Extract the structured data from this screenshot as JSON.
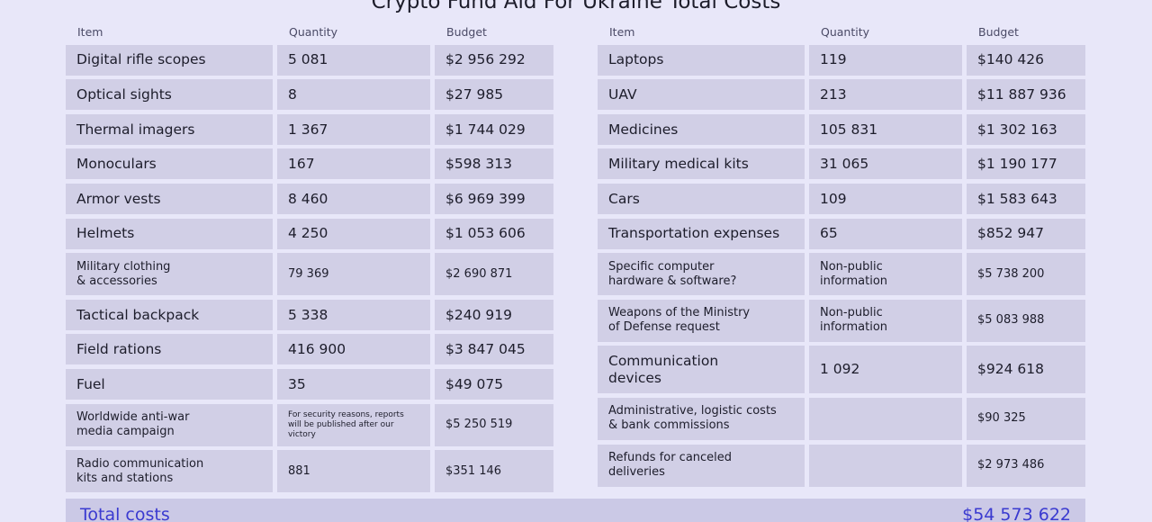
{
  "title": "Crypto Fund Aid For Ukraine Total Costs",
  "tables": [
    {
      "header": [
        "Item",
        "Quantity",
        "Budget"
      ],
      "rows": [
        [
          "Digital rifle scopes",
          "5 081",
          "$2 956 292"
        ],
        [
          "Optical sights",
          "8",
          "$27 985"
        ],
        [
          "Thermal imagers",
          "1 367",
          "$1 744 029"
        ],
        [
          "Monoculars",
          "167",
          "$598 313"
        ],
        [
          "Armor vests",
          "8 460",
          "$6 969 399"
        ],
        [
          "Helmets",
          "4 250",
          "$1 053 606"
        ],
        [
          "Military clothing\n& accessories",
          "79 369",
          "$2 690 871"
        ],
        [
          "Tactical backpack",
          "5 338",
          "$240 919"
        ],
        [
          "Field rations",
          "416 900",
          "$3 847 045"
        ],
        [
          "Fuel",
          "35",
          "$49 075"
        ],
        [
          "Worldwide anti-war\nmedia campaign",
          "For security reasons, reports\nwill be published after our\nvictory",
          "$5 250 519"
        ],
        [
          "Radio communication\nkits and stations",
          "881",
          "$351 146"
        ]
      ]
    },
    {
      "header": [
        "Item",
        "Quantity",
        "Budget"
      ],
      "rows": [
        [
          "Laptops",
          "119",
          "$140 426"
        ],
        [
          "UAV",
          "213",
          "$11 887 936"
        ],
        [
          "Medicines",
          "105 831",
          "$1 302 163"
        ],
        [
          "Military medical kits",
          "31 065",
          "$1 190 177"
        ],
        [
          "Cars",
          "109",
          "$1 583 643"
        ],
        [
          "Transportation expenses",
          "65",
          "$852 947"
        ],
        [
          "Specific computer\nhardware & software?",
          "Non-public\ninformation",
          "$5 738 200"
        ],
        [
          "Weapons of the Ministry\nof Defense request",
          "Non-public\ninformation",
          "$5 083 988"
        ],
        [
          "Communication\ndevices",
          "1 092",
          "$924 618"
        ],
        [
          "Administrative, logistic costs\n& bank commissions",
          null,
          "$90 325"
        ],
        [
          "Refunds for canceled\ndeliveries",
          null,
          "$2 973 486"
        ]
      ]
    }
  ],
  "total": {
    "label": "Total costs",
    "value": "$54 573 622"
  }
}
